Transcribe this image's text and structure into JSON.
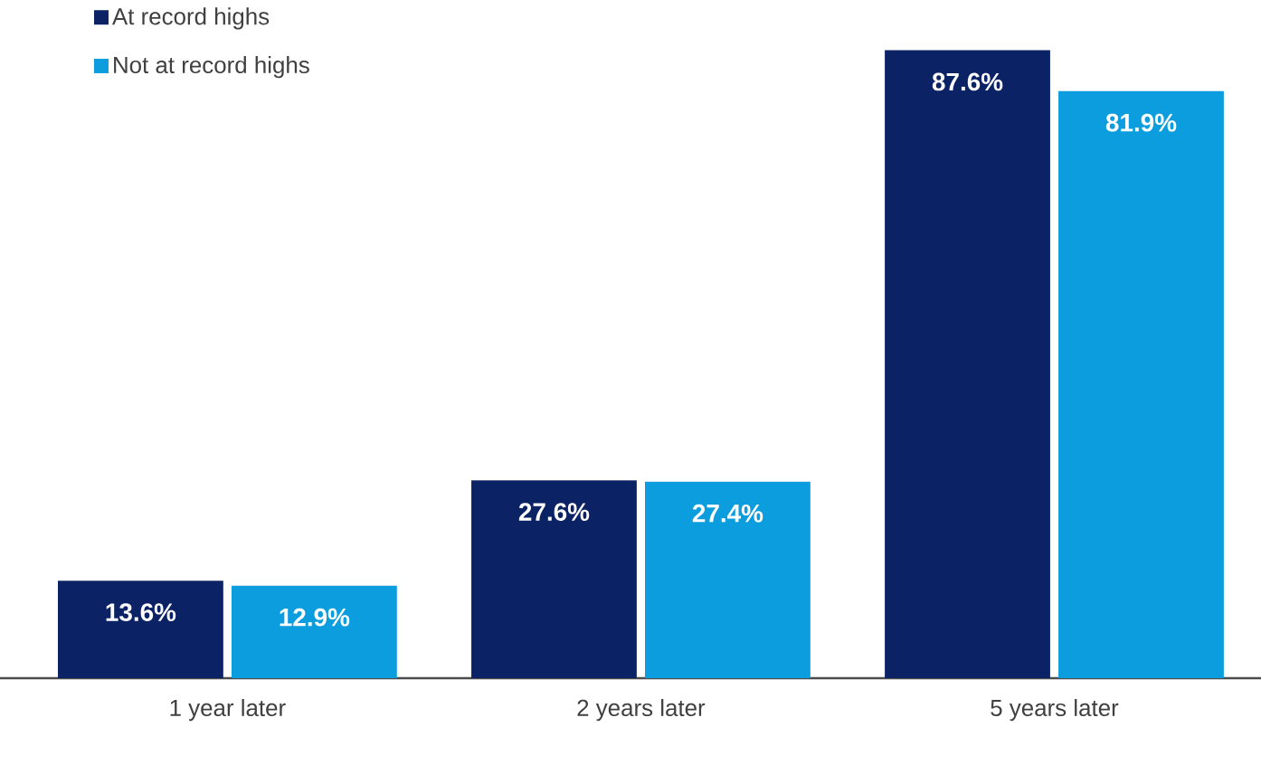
{
  "chart_data": {
    "type": "bar",
    "categories": [
      "1 year later",
      "2 years later",
      "5 years later"
    ],
    "series": [
      {
        "name": "At record highs",
        "color": "#0b2265",
        "values": [
          13.6,
          27.6,
          87.6
        ],
        "value_labels": [
          "13.6%",
          "27.6%",
          "87.6%"
        ]
      },
      {
        "name": "Not at record highs",
        "color": "#0c9ddf",
        "values": [
          12.9,
          27.4,
          81.9
        ],
        "value_labels": [
          "12.9%",
          "27.4%",
          "81.9%"
        ]
      }
    ],
    "legend": "top left"
  }
}
